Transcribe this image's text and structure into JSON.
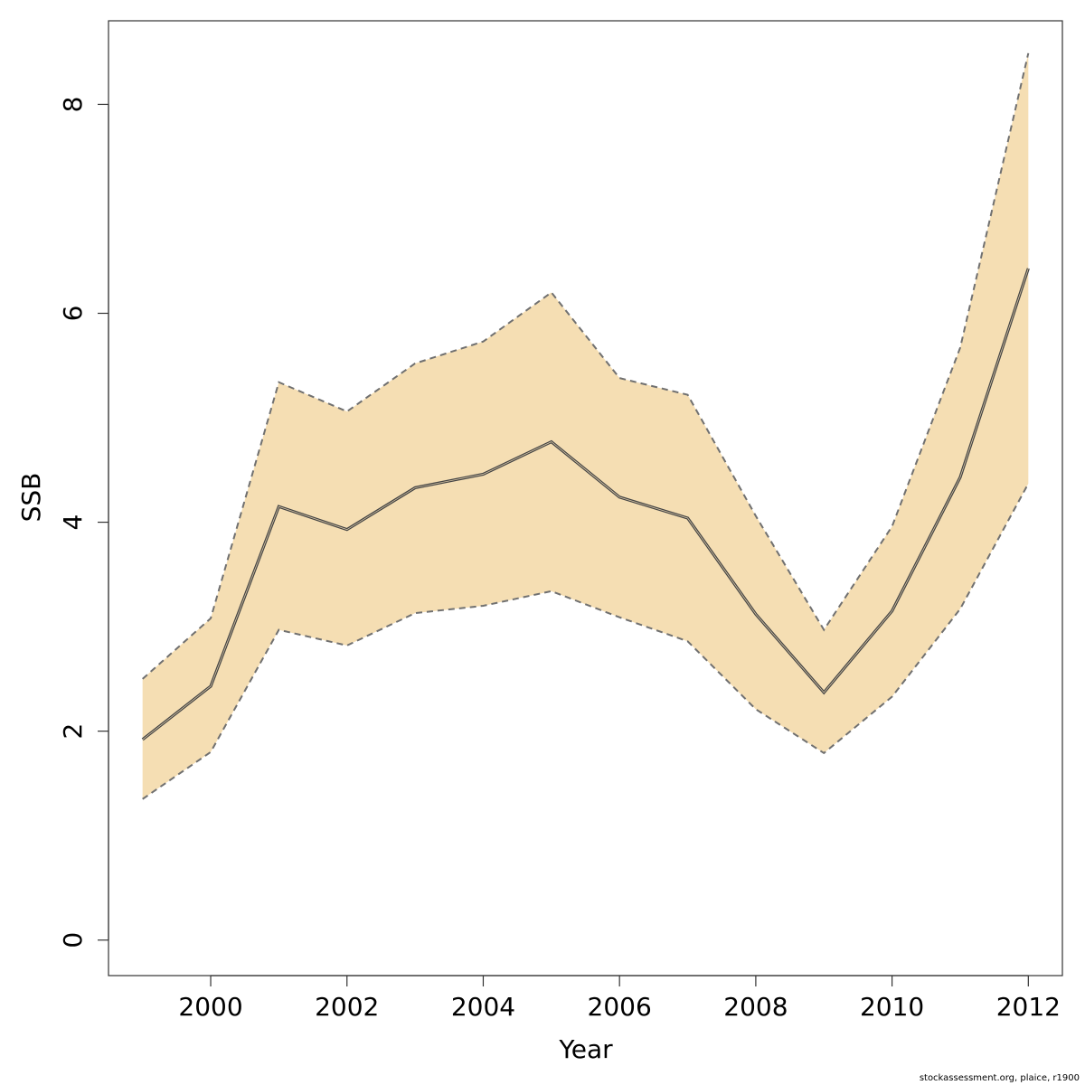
{
  "chart_data": {
    "type": "area",
    "x": [
      1999,
      2000,
      2001,
      2002,
      2003,
      2004,
      2005,
      2006,
      2007,
      2008,
      2009,
      2010,
      2011,
      2012
    ],
    "series": [
      {
        "values": [
          1.92,
          2.43,
          4.15,
          3.93,
          4.33,
          4.46,
          4.77,
          4.24,
          4.04,
          3.12,
          2.37,
          3.15,
          4.43,
          6.43
        ]
      },
      {
        "values": [
          1.35,
          1.8,
          2.97,
          2.82,
          3.13,
          3.2,
          3.34,
          3.09,
          2.86,
          2.21,
          1.79,
          2.33,
          3.17,
          4.37
        ]
      },
      {
        "values": [
          2.5,
          3.08,
          5.34,
          5.06,
          5.52,
          5.73,
          6.2,
          5.38,
          5.22,
          4.06,
          2.97,
          3.96,
          5.67,
          8.49
        ]
      }
    ],
    "xlabel": "Year",
    "ylabel": "SSB",
    "xlim": [
      1998.5,
      2012.5
    ],
    "ylim": [
      -0.34,
      8.8
    ],
    "xticks": [
      2000,
      2002,
      2004,
      2006,
      2008,
      2010,
      2012
    ],
    "yticks": [
      0,
      2,
      4,
      6,
      8
    ],
    "grid": false,
    "colors": {
      "band": "#f5deb3",
      "bound_line": "#707070",
      "median_line": "#444444"
    }
  },
  "footnote": "stockassessment.org, plaice, r1900"
}
